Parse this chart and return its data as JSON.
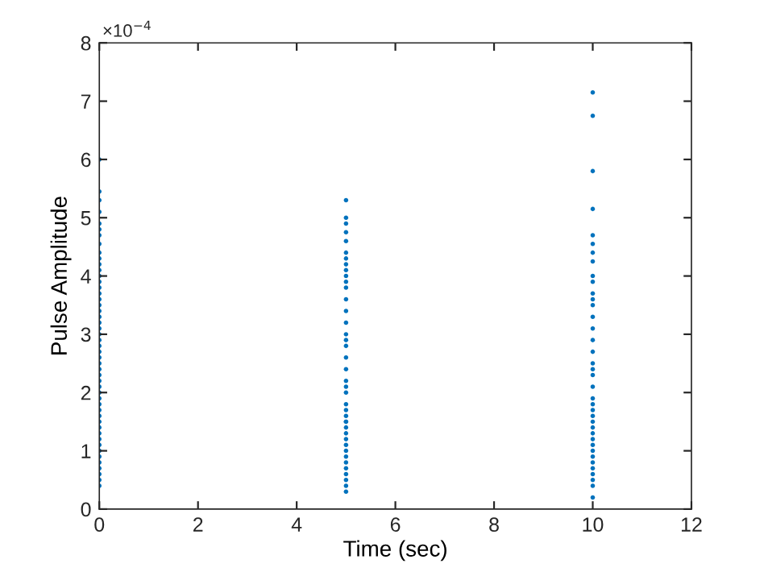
{
  "chart_data": {
    "type": "scatter",
    "xlabel": "Time (sec)",
    "ylabel": "Pulse Amplitude",
    "annotations": [
      "×10$^{−4}$"
    ],
    "xlim": [
      0,
      12
    ],
    "xticks": [
      0,
      2,
      4,
      6,
      8,
      10,
      12
    ],
    "ylim": [
      0,
      8
    ],
    "yticks": [
      0,
      1,
      2,
      3,
      4,
      5,
      6,
      7,
      8
    ],
    "grid": false,
    "marker": "circle",
    "series": [
      {
        "color": "#0072bd",
        "x": [
          0,
          0,
          0,
          0,
          0,
          0,
          0,
          0,
          0,
          0,
          0,
          0,
          0,
          0,
          0,
          0,
          0,
          0,
          0,
          0,
          0,
          0,
          0,
          0,
          0,
          0,
          0,
          0,
          0,
          0,
          0,
          0,
          0,
          0,
          0,
          0,
          0,
          0,
          0,
          0,
          0,
          0,
          0,
          0,
          0,
          0,
          0,
          0,
          0,
          5,
          5,
          5,
          5,
          5,
          5,
          5,
          5,
          5,
          5,
          5,
          5,
          5,
          5,
          5,
          5,
          5,
          5,
          5,
          5,
          5,
          5,
          5,
          5,
          5,
          5,
          5,
          5,
          5,
          5,
          5,
          5,
          5,
          5,
          5,
          5,
          5,
          5,
          5,
          5,
          10,
          10,
          10,
          10,
          10,
          10,
          10,
          10,
          10,
          10,
          10,
          10,
          10,
          10,
          10,
          10,
          10,
          10,
          10,
          10,
          10,
          10,
          10,
          10,
          10,
          10,
          10,
          10,
          10,
          10,
          10,
          10,
          10,
          10,
          10,
          10,
          10,
          10
        ],
        "values": [
          6.0,
          5.45,
          5.3,
          5.1,
          4.9,
          4.8,
          4.7,
          4.55,
          4.4,
          4.3,
          4.2,
          4.1,
          4.0,
          3.9,
          3.8,
          3.7,
          3.6,
          3.5,
          3.4,
          3.3,
          3.2,
          3.1,
          3.0,
          2.9,
          2.8,
          2.7,
          2.6,
          2.5,
          2.4,
          2.3,
          2.2,
          2.1,
          2.0,
          1.9,
          1.8,
          1.7,
          1.6,
          1.5,
          1.4,
          1.3,
          1.2,
          1.1,
          1.0,
          0.9,
          0.8,
          0.7,
          0.6,
          0.5,
          0.4,
          5.3,
          5.0,
          4.9,
          4.75,
          4.6,
          4.4,
          4.3,
          4.2,
          4.1,
          4.0,
          3.8,
          3.6,
          3.4,
          3.2,
          3.0,
          2.8,
          2.6,
          2.4,
          2.2,
          2.0,
          1.8,
          1.7,
          1.6,
          1.5,
          1.4,
          1.3,
          1.2,
          1.1,
          1.0,
          0.9,
          0.8,
          0.7,
          0.6,
          0.5,
          0.4,
          0.3,
          3.9,
          2.9,
          2.1,
          1.5,
          7.15,
          6.75,
          5.8,
          5.15,
          4.7,
          4.55,
          4.4,
          4.25,
          4.0,
          3.9,
          3.7,
          3.5,
          3.3,
          3.1,
          2.9,
          2.7,
          2.5,
          2.3,
          2.1,
          1.9,
          1.8,
          1.7,
          1.6,
          1.5,
          1.4,
          1.3,
          1.2,
          1.1,
          1.0,
          0.9,
          0.8,
          0.7,
          0.6,
          0.5,
          0.4,
          0.2,
          3.6,
          2.4
        ]
      }
    ]
  }
}
